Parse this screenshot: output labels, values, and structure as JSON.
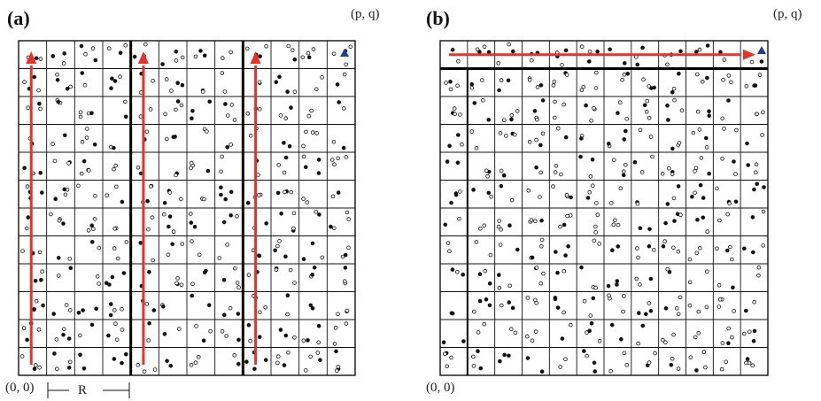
{
  "panels": [
    {
      "id": "a",
      "label": "(a)",
      "corner_top_right": "(p, q)",
      "corner_bottom_left": "(0, 0)",
      "dimension_label": "R",
      "grid": {
        "cols": 12,
        "rows": 12
      },
      "thick_column_boundaries": [
        4,
        8
      ],
      "arrows": "three upward vertical sweeps (columns 1, 5, 9)",
      "marker": "triangle-in-top-right-cell"
    },
    {
      "id": "b",
      "label": "(b)",
      "corner_top_right": "(p, q)",
      "corner_bottom_left": "(0, 0)",
      "grid": {
        "cols": 12,
        "rows": 12
      },
      "thick_row_boundaries": [
        1
      ],
      "thick_col_boundaries": [
        1
      ],
      "arrows": "one rightward horizontal sweep along top row",
      "marker": "triangle-in-top-right-cell"
    }
  ],
  "colors": {
    "arrow": "#e8312a",
    "marker": "#1f3f8f",
    "grid": "#111111"
  }
}
